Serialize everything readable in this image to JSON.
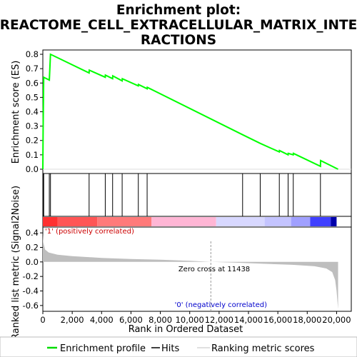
{
  "chart_data": {
    "type": "line",
    "title_line1": "Enrichment plot:",
    "title_line2": "REACTOME_CELL_EXTRACELLULAR_MATRIX_INTE",
    "title_line3": "RACTIONS",
    "es_ylabel": "Enrichment score (ES)",
    "metric_ylabel": "Ranked list metric (Signal2Noise)",
    "xlabel": "Rank in Ordered Dataset",
    "x_range": [
      0,
      21000
    ],
    "x_ticks": [
      0,
      2000,
      4000,
      6000,
      8000,
      10000,
      12000,
      14000,
      16000,
      18000,
      20000
    ],
    "x_tick_labels": [
      "0",
      "2,000",
      "4,000",
      "6,000",
      "8,000",
      "10,000",
      "12,000",
      "14,000",
      "16,000",
      "18,000",
      "20,000"
    ],
    "es_range": [
      -0.03,
      0.83
    ],
    "es_ticks": [
      0.0,
      0.1,
      0.2,
      0.3,
      0.4,
      0.5,
      0.6,
      0.7,
      0.8
    ],
    "es_tick_labels": [
      "0.0",
      "0.1",
      "0.2",
      "0.3",
      "0.4",
      "0.5",
      "0.6",
      "0.7",
      "0.8"
    ],
    "metric_range": [
      -0.68,
      0.48
    ],
    "metric_ticks": [
      0.4,
      0.2,
      0.0,
      -0.2,
      -0.4,
      -0.6
    ],
    "metric_tick_labels": [
      "0.4",
      "0.2",
      "0.0",
      "-0.2",
      "-0.4",
      "-0.6"
    ],
    "hits": [
      20,
      60,
      440,
      520,
      3150,
      4250,
      4750,
      5400,
      6500,
      7100,
      13600,
      14800,
      16100,
      16700,
      17050,
      18900
    ],
    "enrichment_profile": [
      [
        0,
        0.0
      ],
      [
        20,
        0.28
      ],
      [
        60,
        0.64
      ],
      [
        440,
        0.62
      ],
      [
        520,
        0.8
      ],
      [
        3150,
        0.67
      ],
      [
        3160,
        0.69
      ],
      [
        4250,
        0.64
      ],
      [
        4260,
        0.655
      ],
      [
        4750,
        0.63
      ],
      [
        4760,
        0.65
      ],
      [
        5400,
        0.615
      ],
      [
        5410,
        0.63
      ],
      [
        6500,
        0.58
      ],
      [
        6510,
        0.59
      ],
      [
        7100,
        0.56
      ],
      [
        7110,
        0.57
      ],
      [
        13600,
        0.24
      ],
      [
        14800,
        0.18
      ],
      [
        16100,
        0.12
      ],
      [
        16110,
        0.13
      ],
      [
        16700,
        0.1
      ],
      [
        16710,
        0.11
      ],
      [
        17050,
        0.1
      ],
      [
        17060,
        0.11
      ],
      [
        18900,
        0.02
      ],
      [
        18910,
        0.06
      ],
      [
        20100,
        0.0
      ]
    ],
    "metric_curve": [
      [
        0,
        0.4
      ],
      [
        30,
        0.27
      ],
      [
        150,
        0.17
      ],
      [
        400,
        0.13
      ],
      [
        1000,
        0.1
      ],
      [
        2000,
        0.08
      ],
      [
        4000,
        0.055
      ],
      [
        6000,
        0.04
      ],
      [
        8000,
        0.03
      ],
      [
        10000,
        0.015
      ],
      [
        11438,
        0.0
      ],
      [
        13000,
        -0.01
      ],
      [
        15000,
        -0.025
      ],
      [
        17000,
        -0.04
      ],
      [
        18500,
        -0.06
      ],
      [
        19300,
        -0.09
      ],
      [
        19700,
        -0.14
      ],
      [
        19900,
        -0.25
      ],
      [
        20000,
        -0.4
      ],
      [
        20100,
        -0.65
      ]
    ],
    "gradient_colors": [
      "#ff0000",
      "#ff3a3a",
      "#ff7a7a",
      "#ffb6d5",
      "#d8d8ff",
      "#a0a0ff",
      "#4040ff",
      "#0000aa"
    ],
    "positive_label": "'1' (positively correlated)",
    "negative_label": "'0' (negatively correlated)",
    "zero_cross_label": "Zero cross at 11438",
    "zero_cross": 11438,
    "legend": [
      {
        "name": "Enrichment profile",
        "color": "#00dd00"
      },
      {
        "name": "Hits",
        "color": "#000000"
      },
      {
        "name": "Ranking metric scores",
        "color": "#c0c0c0"
      }
    ],
    "colors": {
      "profile": "#00ff00",
      "hits": "#000000",
      "metric": "#bebebe",
      "positive_text": "#cc0000",
      "negative_text": "#0000cc"
    }
  }
}
